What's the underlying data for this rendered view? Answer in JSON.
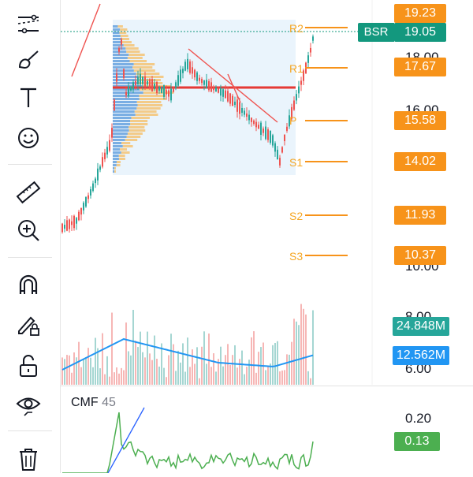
{
  "tools": [
    {
      "name": "trend-line-tool-icon"
    },
    {
      "name": "brush-tool-icon"
    },
    {
      "name": "text-tool-icon"
    },
    {
      "name": "emoji-tool-icon"
    },
    {
      "name": "ruler-tool-icon"
    },
    {
      "name": "zoom-in-tool-icon"
    },
    {
      "name": "magnet-tool-icon"
    },
    {
      "name": "lock-drawing-tool-icon"
    },
    {
      "name": "unlock-tool-icon"
    },
    {
      "name": "eye-visibility-tool-icon"
    },
    {
      "name": "trash-tool-icon"
    }
  ],
  "price_axis": {
    "ticks": [
      "18.00",
      "16.00",
      "10.00",
      "8.00",
      "6.00"
    ],
    "cmf_ticks": [
      "0.20"
    ]
  },
  "pivot_levels": [
    {
      "label": "R2",
      "price": "19.23",
      "color": "#f7931a"
    },
    {
      "label": "R1",
      "price": "17.67",
      "color": "#f7931a"
    },
    {
      "label": "P",
      "price": "15.58",
      "color": "#f7931a"
    },
    {
      "label": "S1",
      "price": "14.02",
      "color": "#f7931a"
    },
    {
      "label": "S2",
      "price": "11.93",
      "color": "#f7931a"
    },
    {
      "label": "S3",
      "price": "10.37",
      "color": "#f7931a"
    }
  ],
  "last_price": {
    "symbol": "BSR",
    "price": "19.05",
    "color": "#13987e"
  },
  "volume": {
    "value": "24.848M",
    "color": "#26a69a",
    "ma_value": "12.562M",
    "ma_color": "#2196f3"
  },
  "cmf": {
    "name": "CMF",
    "length": "45",
    "value": "0.13",
    "color": "#4caf50"
  },
  "colors": {
    "up": "#26a69a",
    "down": "#ef5350",
    "level": "#f7931a",
    "poc": "#e53935",
    "vp_box": "#e3f0fb"
  }
}
